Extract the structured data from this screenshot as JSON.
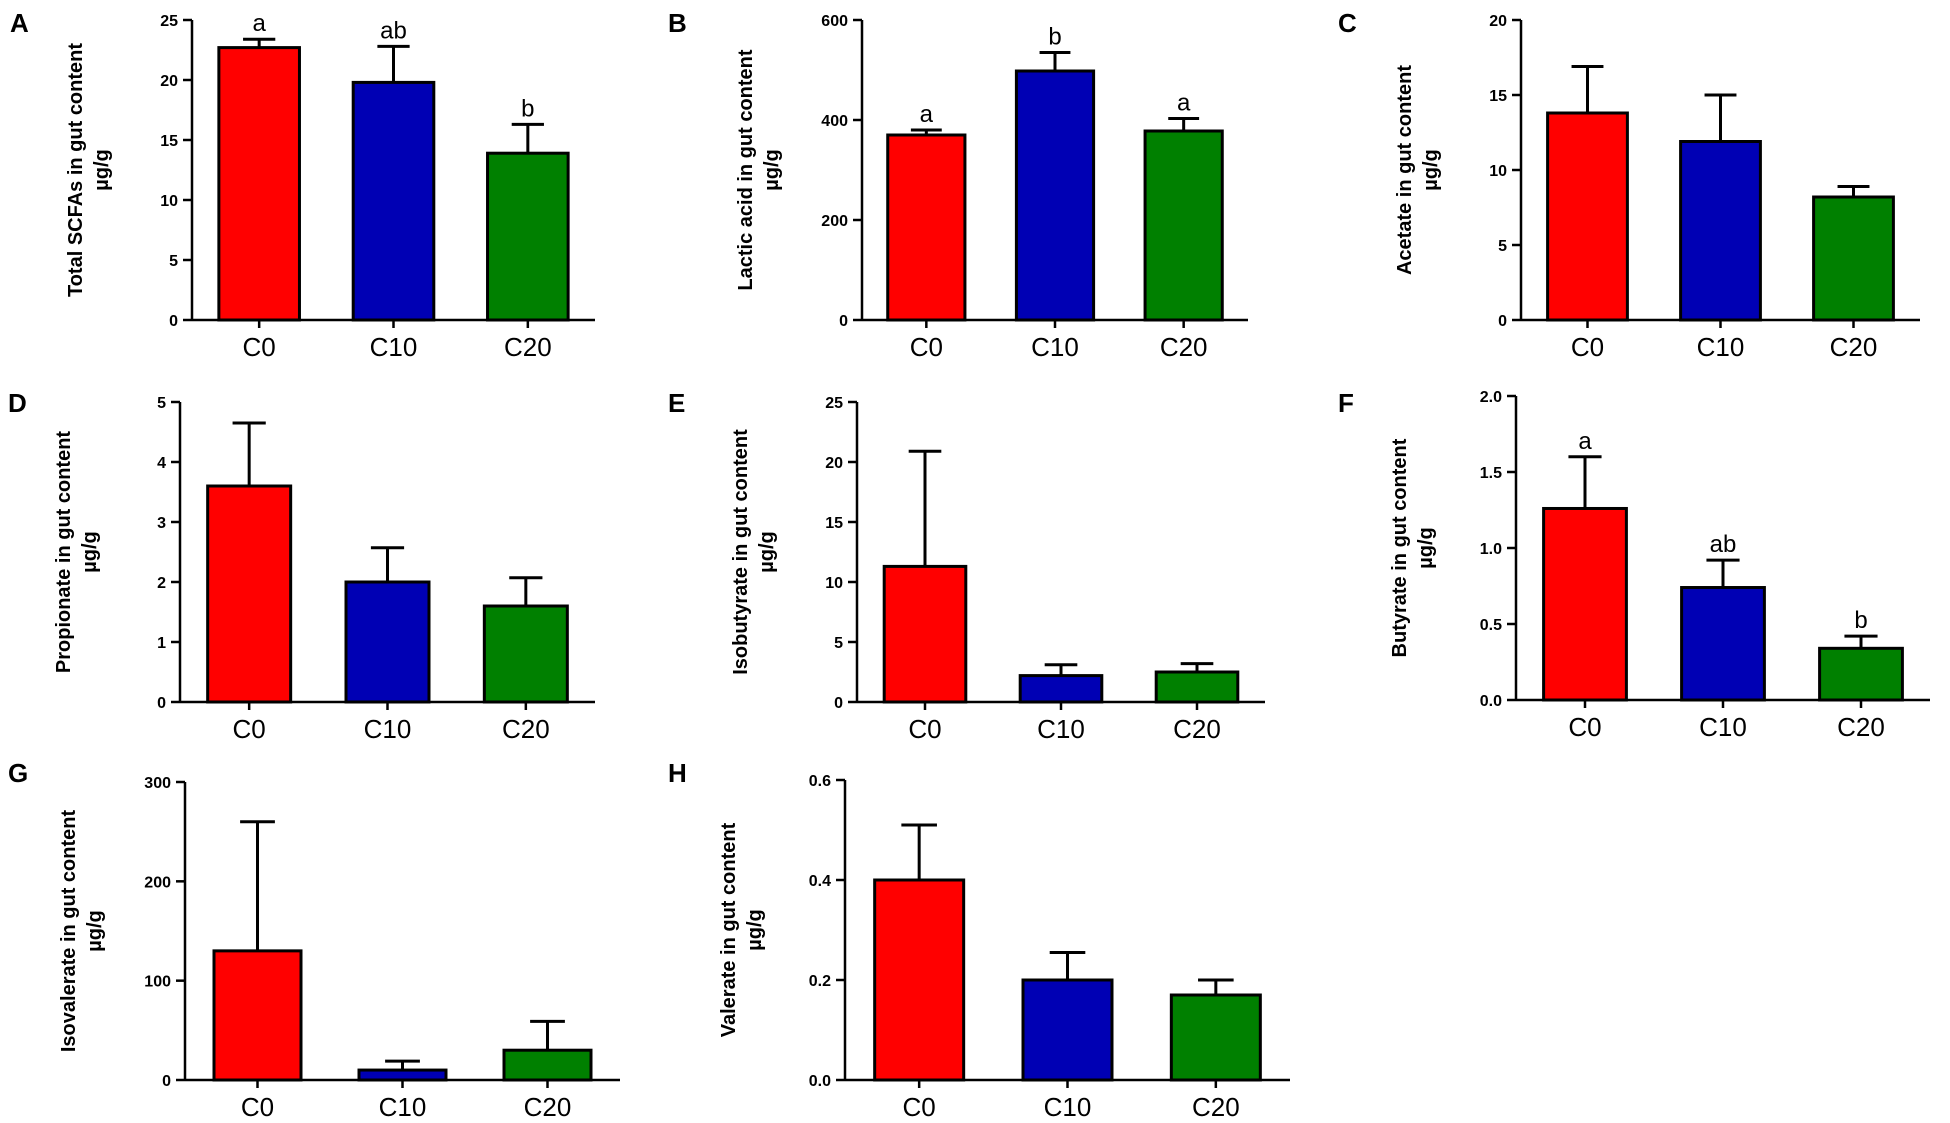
{
  "colors": {
    "C0": "#ff0000",
    "C10": "#0000b4",
    "C20": "#008000",
    "axis": "#000000"
  },
  "chart_data": [
    {
      "panel": "A",
      "type": "bar",
      "ylabel_line1": "Total SCFAs in gut content",
      "ylabel_line2": "µg/g",
      "categories": [
        "C0",
        "C10",
        "C20"
      ],
      "values": [
        22.7,
        19.8,
        13.9
      ],
      "errors": [
        0.7,
        3.0,
        2.4
      ],
      "letters": [
        "a",
        "ab",
        "b"
      ],
      "ylim": [
        0,
        25
      ],
      "yticks": [
        0,
        5,
        10,
        15,
        20,
        25
      ],
      "ytick_labels": [
        "0",
        "5",
        "10",
        "15",
        "20",
        "25"
      ]
    },
    {
      "panel": "B",
      "type": "bar",
      "ylabel_line1": "Lactic acid in gut content",
      "ylabel_line2": "µg/g",
      "categories": [
        "C0",
        "C10",
        "C20"
      ],
      "values": [
        370,
        498,
        378
      ],
      "errors": [
        10,
        37,
        25
      ],
      "letters": [
        "a",
        "b",
        "a"
      ],
      "ylim": [
        0,
        600
      ],
      "yticks": [
        0,
        200,
        400,
        600
      ],
      "ytick_labels": [
        "0",
        "200",
        "400",
        "600"
      ]
    },
    {
      "panel": "C",
      "type": "bar",
      "ylabel_line1": "Acetate in gut content",
      "ylabel_line2": "µg/g",
      "categories": [
        "C0",
        "C10",
        "C20"
      ],
      "values": [
        13.8,
        11.9,
        8.2
      ],
      "errors": [
        3.1,
        3.1,
        0.7
      ],
      "letters": [
        "",
        "",
        ""
      ],
      "ylim": [
        0,
        20
      ],
      "yticks": [
        0,
        5,
        10,
        15,
        20
      ],
      "ytick_labels": [
        "0",
        "5",
        "10",
        "15",
        "20"
      ]
    },
    {
      "panel": "D",
      "type": "bar",
      "ylabel_line1": "Propionate in gut content",
      "ylabel_line2": "µg/g",
      "categories": [
        "C0",
        "C10",
        "C20"
      ],
      "values": [
        3.6,
        2.0,
        1.6
      ],
      "errors": [
        1.05,
        0.57,
        0.47
      ],
      "letters": [
        "",
        "",
        ""
      ],
      "ylim": [
        0,
        5
      ],
      "yticks": [
        0,
        1,
        2,
        3,
        4,
        5
      ],
      "ytick_labels": [
        "0",
        "1",
        "2",
        "3",
        "4",
        "5"
      ]
    },
    {
      "panel": "E",
      "type": "bar",
      "ylabel_line1": "Isobutyrate in gut content",
      "ylabel_line2": "µg/g",
      "categories": [
        "C0",
        "C10",
        "C20"
      ],
      "values": [
        11.3,
        2.2,
        2.5
      ],
      "errors": [
        9.6,
        0.9,
        0.7
      ],
      "letters": [
        "",
        "",
        ""
      ],
      "ylim": [
        0,
        25
      ],
      "yticks": [
        0,
        5,
        10,
        15,
        20,
        25
      ],
      "ytick_labels": [
        "0",
        "5",
        "10",
        "15",
        "20",
        "25"
      ]
    },
    {
      "panel": "F",
      "type": "bar",
      "ylabel_line1": "Butyrate in gut content",
      "ylabel_line2": "µg/g",
      "categories": [
        "C0",
        "C10",
        "C20"
      ],
      "values": [
        1.26,
        0.74,
        0.34
      ],
      "errors": [
        0.34,
        0.18,
        0.08
      ],
      "letters": [
        "a",
        "ab",
        "b"
      ],
      "ylim": [
        0,
        2.0
      ],
      "yticks": [
        0,
        0.5,
        1.0,
        1.5,
        2.0
      ],
      "ytick_labels": [
        "0.0",
        "0.5",
        "1.0",
        "1.5",
        "2.0"
      ]
    },
    {
      "panel": "G",
      "type": "bar",
      "ylabel_line1": "Isovalerate in gut content",
      "ylabel_line2": "µg/g",
      "categories": [
        "C0",
        "C10",
        "C20"
      ],
      "values": [
        130,
        10,
        30
      ],
      "errors": [
        130,
        9,
        29
      ],
      "letters": [
        "",
        "",
        ""
      ],
      "ylim": [
        0,
        300
      ],
      "yticks": [
        0,
        100,
        200,
        300
      ],
      "ytick_labels": [
        "0",
        "100",
        "200",
        "300"
      ]
    },
    {
      "panel": "H",
      "type": "bar",
      "ylabel_line1": "Valerate in gut content",
      "ylabel_line2": "µg/g",
      "categories": [
        "C0",
        "C10",
        "C20"
      ],
      "values": [
        0.4,
        0.2,
        0.17
      ],
      "errors": [
        0.11,
        0.055,
        0.03
      ],
      "letters": [
        "",
        "",
        ""
      ],
      "ylim": [
        0,
        0.6
      ],
      "yticks": [
        0,
        0.2,
        0.4,
        0.6
      ],
      "ytick_labels": [
        "0.0",
        "0.2",
        "0.4",
        "0.6"
      ]
    }
  ]
}
